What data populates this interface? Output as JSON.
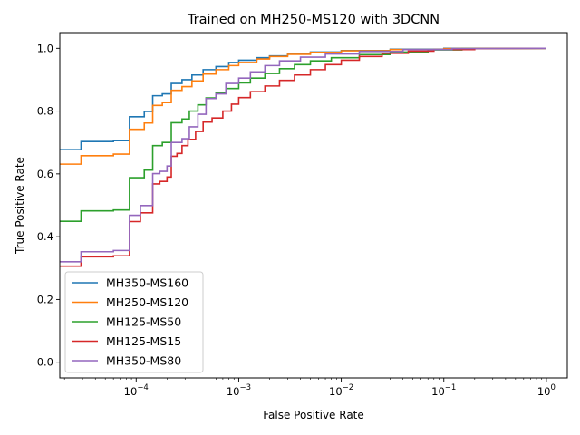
{
  "chart_data": {
    "type": "line",
    "title": "Trained on MH250-MS120 with 3DCNN",
    "xlabel": "False Positive Rate",
    "ylabel": "True Positive Rate",
    "xscale": "log",
    "xlim": [
      1.8e-05,
      1.6
    ],
    "ylim": [
      -0.05,
      1.05
    ],
    "x_ticks": [
      {
        "value": 0.0001,
        "label_base": "10",
        "label_exp": "−4"
      },
      {
        "value": 0.001,
        "label_base": "10",
        "label_exp": "−3"
      },
      {
        "value": 0.01,
        "label_base": "10",
        "label_exp": "−2"
      },
      {
        "value": 0.1,
        "label_base": "10",
        "label_exp": "−1"
      },
      {
        "value": 1,
        "label_base": "10",
        "label_exp": "0"
      }
    ],
    "y_ticks": [
      {
        "value": 0.0,
        "label": "0.0"
      },
      {
        "value": 0.2,
        "label": "0.2"
      },
      {
        "value": 0.4,
        "label": "0.4"
      },
      {
        "value": 0.6,
        "label": "0.6"
      },
      {
        "value": 0.8,
        "label": "0.8"
      },
      {
        "value": 1.0,
        "label": "1.0"
      }
    ],
    "grid": false,
    "legend_position": "lower-left",
    "series": [
      {
        "name": "MH350-MS160",
        "color": "#1f77b4",
        "points": [
          [
            1.8e-05,
            0.677
          ],
          [
            2.9e-05,
            0.677
          ],
          [
            2.9e-05,
            0.703
          ],
          [
            6e-05,
            0.703
          ],
          [
            6e-05,
            0.706
          ],
          [
            8.6e-05,
            0.706
          ],
          [
            8.6e-05,
            0.782
          ],
          [
            0.00012,
            0.782
          ],
          [
            0.00012,
            0.799
          ],
          [
            0.000145,
            0.799
          ],
          [
            0.000145,
            0.849
          ],
          [
            0.00018,
            0.849
          ],
          [
            0.00018,
            0.855
          ],
          [
            0.00022,
            0.855
          ],
          [
            0.00022,
            0.888
          ],
          [
            0.00028,
            0.888
          ],
          [
            0.00028,
            0.9
          ],
          [
            0.00035,
            0.9
          ],
          [
            0.00035,
            0.915
          ],
          [
            0.00045,
            0.915
          ],
          [
            0.00045,
            0.932
          ],
          [
            0.0006,
            0.932
          ],
          [
            0.0006,
            0.942
          ],
          [
            0.0008,
            0.942
          ],
          [
            0.0008,
            0.955
          ],
          [
            0.001,
            0.955
          ],
          [
            0.001,
            0.962
          ],
          [
            0.0015,
            0.962
          ],
          [
            0.0015,
            0.97
          ],
          [
            0.002,
            0.97
          ],
          [
            0.002,
            0.976
          ],
          [
            0.003,
            0.976
          ],
          [
            0.003,
            0.982
          ],
          [
            0.005,
            0.982
          ],
          [
            0.005,
            0.988
          ],
          [
            0.01,
            0.988
          ],
          [
            0.01,
            0.993
          ],
          [
            0.03,
            0.993
          ],
          [
            0.03,
            0.997
          ],
          [
            0.1,
            0.997
          ],
          [
            0.1,
            1.0
          ],
          [
            1.0,
            1.0
          ]
        ]
      },
      {
        "name": "MH250-MS120",
        "color": "#ff7f0e",
        "points": [
          [
            1.8e-05,
            0.631
          ],
          [
            2.9e-05,
            0.631
          ],
          [
            2.9e-05,
            0.658
          ],
          [
            6e-05,
            0.658
          ],
          [
            6e-05,
            0.663
          ],
          [
            8.6e-05,
            0.663
          ],
          [
            8.6e-05,
            0.742
          ],
          [
            0.00012,
            0.742
          ],
          [
            0.00012,
            0.762
          ],
          [
            0.000145,
            0.762
          ],
          [
            0.000145,
            0.818
          ],
          [
            0.00018,
            0.818
          ],
          [
            0.00018,
            0.827
          ],
          [
            0.00022,
            0.827
          ],
          [
            0.00022,
            0.866
          ],
          [
            0.00028,
            0.866
          ],
          [
            0.00028,
            0.878
          ],
          [
            0.00035,
            0.878
          ],
          [
            0.00035,
            0.896
          ],
          [
            0.00045,
            0.896
          ],
          [
            0.00045,
            0.918
          ],
          [
            0.0006,
            0.918
          ],
          [
            0.0006,
            0.932
          ],
          [
            0.0008,
            0.932
          ],
          [
            0.0008,
            0.945
          ],
          [
            0.001,
            0.945
          ],
          [
            0.001,
            0.955
          ],
          [
            0.0015,
            0.955
          ],
          [
            0.0015,
            0.966
          ],
          [
            0.002,
            0.966
          ],
          [
            0.002,
            0.974
          ],
          [
            0.003,
            0.974
          ],
          [
            0.003,
            0.981
          ],
          [
            0.005,
            0.981
          ],
          [
            0.005,
            0.987
          ],
          [
            0.01,
            0.987
          ],
          [
            0.01,
            0.992
          ],
          [
            0.03,
            0.992
          ],
          [
            0.03,
            0.996
          ],
          [
            0.1,
            0.996
          ],
          [
            0.1,
            0.999
          ],
          [
            1.0,
            1.0
          ]
        ]
      },
      {
        "name": "MH125-MS50",
        "color": "#2ca02c",
        "points": [
          [
            1.8e-05,
            0.449
          ],
          [
            2.9e-05,
            0.449
          ],
          [
            2.9e-05,
            0.482
          ],
          [
            6e-05,
            0.482
          ],
          [
            6e-05,
            0.485
          ],
          [
            8.6e-05,
            0.485
          ],
          [
            8.6e-05,
            0.588
          ],
          [
            0.00012,
            0.588
          ],
          [
            0.00012,
            0.612
          ],
          [
            0.000145,
            0.612
          ],
          [
            0.000145,
            0.69
          ],
          [
            0.00018,
            0.69
          ],
          [
            0.00018,
            0.7
          ],
          [
            0.00022,
            0.7
          ],
          [
            0.00022,
            0.763
          ],
          [
            0.00028,
            0.763
          ],
          [
            0.00028,
            0.775
          ],
          [
            0.00033,
            0.775
          ],
          [
            0.00033,
            0.8
          ],
          [
            0.0004,
            0.8
          ],
          [
            0.0004,
            0.82
          ],
          [
            0.00048,
            0.82
          ],
          [
            0.00048,
            0.842
          ],
          [
            0.0006,
            0.842
          ],
          [
            0.0006,
            0.858
          ],
          [
            0.00075,
            0.858
          ],
          [
            0.00075,
            0.872
          ],
          [
            0.001,
            0.872
          ],
          [
            0.001,
            0.89
          ],
          [
            0.0013,
            0.89
          ],
          [
            0.0013,
            0.905
          ],
          [
            0.0018,
            0.905
          ],
          [
            0.0018,
            0.92
          ],
          [
            0.0025,
            0.92
          ],
          [
            0.0025,
            0.935
          ],
          [
            0.0035,
            0.935
          ],
          [
            0.0035,
            0.948
          ],
          [
            0.005,
            0.948
          ],
          [
            0.005,
            0.96
          ],
          [
            0.008,
            0.96
          ],
          [
            0.008,
            0.97
          ],
          [
            0.015,
            0.97
          ],
          [
            0.015,
            0.98
          ],
          [
            0.03,
            0.98
          ],
          [
            0.03,
            0.988
          ],
          [
            0.07,
            0.988
          ],
          [
            0.07,
            0.995
          ],
          [
            0.15,
            0.995
          ],
          [
            0.15,
            0.999
          ],
          [
            1.0,
            1.0
          ]
        ]
      },
      {
        "name": "MH125-MS15",
        "color": "#d62728",
        "points": [
          [
            1.8e-05,
            0.306
          ],
          [
            2.9e-05,
            0.306
          ],
          [
            2.9e-05,
            0.336
          ],
          [
            6e-05,
            0.336
          ],
          [
            6e-05,
            0.339
          ],
          [
            8.6e-05,
            0.339
          ],
          [
            8.6e-05,
            0.448
          ],
          [
            0.00011,
            0.448
          ],
          [
            0.00011,
            0.476
          ],
          [
            0.000145,
            0.476
          ],
          [
            0.000145,
            0.568
          ],
          [
            0.00017,
            0.568
          ],
          [
            0.00017,
            0.576
          ],
          [
            0.0002,
            0.576
          ],
          [
            0.0002,
            0.59
          ],
          [
            0.00022,
            0.59
          ],
          [
            0.00022,
            0.656
          ],
          [
            0.00025,
            0.656
          ],
          [
            0.00025,
            0.665
          ],
          [
            0.00028,
            0.665
          ],
          [
            0.00028,
            0.69
          ],
          [
            0.00032,
            0.69
          ],
          [
            0.00032,
            0.71
          ],
          [
            0.00038,
            0.71
          ],
          [
            0.00038,
            0.735
          ],
          [
            0.00045,
            0.735
          ],
          [
            0.00045,
            0.765
          ],
          [
            0.00055,
            0.765
          ],
          [
            0.00055,
            0.778
          ],
          [
            0.0007,
            0.778
          ],
          [
            0.0007,
            0.8
          ],
          [
            0.00085,
            0.8
          ],
          [
            0.00085,
            0.822
          ],
          [
            0.001,
            0.822
          ],
          [
            0.001,
            0.843
          ],
          [
            0.0013,
            0.843
          ],
          [
            0.0013,
            0.862
          ],
          [
            0.0018,
            0.862
          ],
          [
            0.0018,
            0.88
          ],
          [
            0.0025,
            0.88
          ],
          [
            0.0025,
            0.898
          ],
          [
            0.0035,
            0.898
          ],
          [
            0.0035,
            0.915
          ],
          [
            0.005,
            0.915
          ],
          [
            0.005,
            0.932
          ],
          [
            0.007,
            0.932
          ],
          [
            0.007,
            0.948
          ],
          [
            0.01,
            0.948
          ],
          [
            0.01,
            0.962
          ],
          [
            0.015,
            0.962
          ],
          [
            0.015,
            0.974
          ],
          [
            0.025,
            0.974
          ],
          [
            0.025,
            0.984
          ],
          [
            0.045,
            0.984
          ],
          [
            0.045,
            0.991
          ],
          [
            0.08,
            0.991
          ],
          [
            0.08,
            0.996
          ],
          [
            0.2,
            0.996
          ],
          [
            0.2,
            0.999
          ],
          [
            1.0,
            1.0
          ]
        ]
      },
      {
        "name": "MH350-MS80",
        "color": "#9467bd",
        "points": [
          [
            1.8e-05,
            0.32
          ],
          [
            2.9e-05,
            0.32
          ],
          [
            2.9e-05,
            0.352
          ],
          [
            6e-05,
            0.352
          ],
          [
            6e-05,
            0.356
          ],
          [
            8.6e-05,
            0.356
          ],
          [
            8.6e-05,
            0.468
          ],
          [
            0.00011,
            0.468
          ],
          [
            0.00011,
            0.499
          ],
          [
            0.000145,
            0.499
          ],
          [
            0.000145,
            0.601
          ],
          [
            0.00017,
            0.601
          ],
          [
            0.00017,
            0.608
          ],
          [
            0.0002,
            0.608
          ],
          [
            0.0002,
            0.625
          ],
          [
            0.00022,
            0.625
          ],
          [
            0.00022,
            0.7
          ],
          [
            0.00028,
            0.7
          ],
          [
            0.00028,
            0.712
          ],
          [
            0.00033,
            0.712
          ],
          [
            0.00033,
            0.75
          ],
          [
            0.0004,
            0.75
          ],
          [
            0.0004,
            0.79
          ],
          [
            0.00048,
            0.79
          ],
          [
            0.00048,
            0.84
          ],
          [
            0.0006,
            0.84
          ],
          [
            0.0006,
            0.855
          ],
          [
            0.00075,
            0.855
          ],
          [
            0.00075,
            0.888
          ],
          [
            0.001,
            0.888
          ],
          [
            0.001,
            0.905
          ],
          [
            0.0013,
            0.905
          ],
          [
            0.0013,
            0.925
          ],
          [
            0.0018,
            0.925
          ],
          [
            0.0018,
            0.945
          ],
          [
            0.0025,
            0.945
          ],
          [
            0.0025,
            0.96
          ],
          [
            0.004,
            0.96
          ],
          [
            0.004,
            0.972
          ],
          [
            0.007,
            0.972
          ],
          [
            0.007,
            0.982
          ],
          [
            0.015,
            0.982
          ],
          [
            0.015,
            0.99
          ],
          [
            0.04,
            0.99
          ],
          [
            0.04,
            0.996
          ],
          [
            0.12,
            0.996
          ],
          [
            0.12,
            0.999
          ],
          [
            1.0,
            1.0
          ]
        ]
      }
    ]
  }
}
